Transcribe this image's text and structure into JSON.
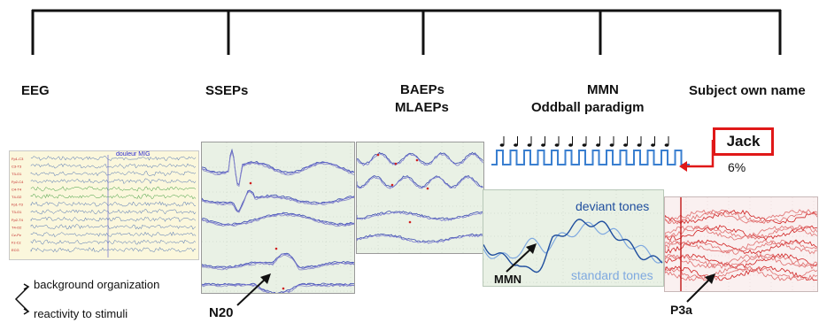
{
  "categories": [
    {
      "id": "eeg",
      "label": "EEG"
    },
    {
      "id": "sseps",
      "label": "SSEPs"
    },
    {
      "id": "baeps",
      "label": "BAEPs",
      "label2": "MLAEPs"
    },
    {
      "id": "mmn",
      "label": "MMN",
      "label2": "Oddball paradigm"
    },
    {
      "id": "own_name",
      "label": "Subject own name"
    }
  ],
  "eeg": {
    "notes": [
      "background organization",
      "reactivity to stimuli"
    ],
    "marker_text": "douleur MIG",
    "channel_labels": [
      "Fp1-C3",
      "C3-T3",
      "T3-O1",
      "Fp2-C4",
      "C4-T4",
      "T4-O2",
      "Fp1-T3",
      "T3-O1",
      "Fp2-T4",
      "T4-O2",
      "Cz-Pz",
      "Fz-Cz",
      "ECG"
    ]
  },
  "sseps": {
    "annotation": "N20"
  },
  "mmn": {
    "deviant_label": "deviant tones",
    "standard_label": "standard tones",
    "annotation": "MMN",
    "stim_word": "Jack",
    "stim_percent": "6%",
    "colors": {
      "deviant": "#1f4e9e",
      "standard": "#7fa9e0",
      "alarm": "#e01818"
    }
  },
  "own_name": {
    "annotation": "P3a"
  }
}
